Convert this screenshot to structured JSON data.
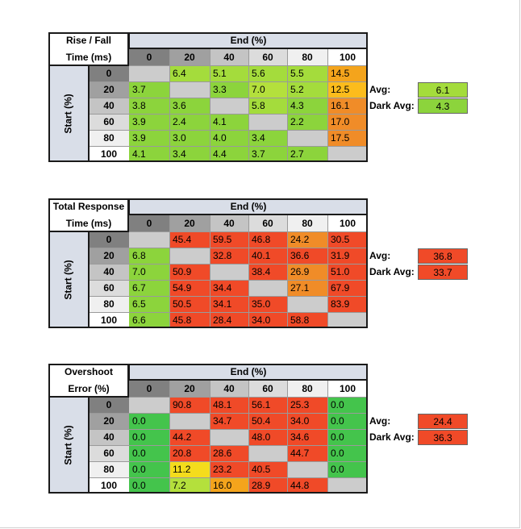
{
  "chart_data": [
    {
      "type": "table",
      "title_lines": [
        "Rise / Fall",
        "Time (ms)"
      ],
      "column_label": "End (%)",
      "row_label": "Start (%)",
      "columns": [
        "0",
        "20",
        "40",
        "60",
        "80",
        "100"
      ],
      "rows": [
        "0",
        "20",
        "40",
        "60",
        "80",
        "100"
      ],
      "values": [
        [
          null,
          6.4,
          5.1,
          5.6,
          5.5,
          14.5
        ],
        [
          3.7,
          null,
          3.3,
          7.0,
          5.2,
          12.5
        ],
        [
          3.8,
          3.6,
          null,
          5.8,
          4.3,
          16.1
        ],
        [
          3.9,
          2.4,
          4.1,
          null,
          2.2,
          17.0
        ],
        [
          3.9,
          3.0,
          4.0,
          3.4,
          null,
          17.5
        ],
        [
          4.1,
          3.4,
          4.4,
          3.7,
          2.7,
          null
        ]
      ],
      "cell_colors": [
        [
          "#cccccc",
          "#a4dc3c",
          "#a4dc3c",
          "#a4dc3c",
          "#a4dc3c",
          "#f4a41c"
        ],
        [
          "#8cd43c",
          "#cccccc",
          "#8cd43c",
          "#b4e03c",
          "#a4dc3c",
          "#fcbc1c"
        ],
        [
          "#8cd43c",
          "#8cd43c",
          "#cccccc",
          "#a4dc3c",
          "#8cd43c",
          "#f08c28"
        ],
        [
          "#8cd43c",
          "#8cd43c",
          "#8cd43c",
          "#cccccc",
          "#8cd43c",
          "#f08c28"
        ],
        [
          "#8cd43c",
          "#8cd43c",
          "#8cd43c",
          "#8cd43c",
          "#cccccc",
          "#f08c28"
        ],
        [
          "#8cd43c",
          "#8cd43c",
          "#8cd43c",
          "#8cd43c",
          "#8cd43c",
          "#cccccc"
        ]
      ],
      "summary": [
        {
          "label": "Avg:",
          "value": "6.1",
          "color": "#a4dc3c"
        },
        {
          "label": "Dark Avg:",
          "value": "4.3",
          "color": "#8cd43c"
        }
      ]
    },
    {
      "type": "table",
      "title_lines": [
        "Total Response",
        "Time (ms)"
      ],
      "column_label": "End (%)",
      "row_label": "Start (%)",
      "columns": [
        "0",
        "20",
        "40",
        "60",
        "80",
        "100"
      ],
      "rows": [
        "0",
        "20",
        "40",
        "60",
        "80",
        "100"
      ],
      "values": [
        [
          null,
          45.4,
          59.5,
          46.8,
          24.2,
          30.5
        ],
        [
          6.8,
          null,
          32.8,
          40.1,
          36.6,
          31.9
        ],
        [
          7.0,
          50.9,
          null,
          38.4,
          26.9,
          51.0
        ],
        [
          6.7,
          54.9,
          34.4,
          null,
          27.1,
          67.9
        ],
        [
          6.5,
          50.5,
          34.1,
          35.0,
          null,
          83.9
        ],
        [
          6.6,
          45.8,
          28.4,
          34.0,
          58.8,
          null
        ]
      ],
      "cell_colors": [
        [
          "#cccccc",
          "#f04a28",
          "#f04a28",
          "#f04a28",
          "#f08c28",
          "#f04a28"
        ],
        [
          "#8cd43c",
          "#cccccc",
          "#f04a28",
          "#f04a28",
          "#f04a28",
          "#f04a28"
        ],
        [
          "#8cd43c",
          "#f04a28",
          "#cccccc",
          "#f04a28",
          "#f08c28",
          "#f04a28"
        ],
        [
          "#8cd43c",
          "#f04a28",
          "#f04a28",
          "#cccccc",
          "#f08c28",
          "#f04a28"
        ],
        [
          "#8cd43c",
          "#f04a28",
          "#f04a28",
          "#f04a28",
          "#cccccc",
          "#f04a28"
        ],
        [
          "#8cd43c",
          "#f04a28",
          "#f04a28",
          "#f04a28",
          "#f04a28",
          "#cccccc"
        ]
      ],
      "summary": [
        {
          "label": "Avg:",
          "value": "36.8",
          "color": "#f04a28"
        },
        {
          "label": "Dark Avg:",
          "value": "33.7",
          "color": "#f04a28"
        }
      ]
    },
    {
      "type": "table",
      "title_lines": [
        "Overshoot",
        "Error (%)"
      ],
      "column_label": "End (%)",
      "row_label": "Start (%)",
      "columns": [
        "0",
        "20",
        "40",
        "60",
        "80",
        "100"
      ],
      "rows": [
        "0",
        "20",
        "40",
        "60",
        "80",
        "100"
      ],
      "values": [
        [
          null,
          90.8,
          48.1,
          56.1,
          25.3,
          0.0
        ],
        [
          0.0,
          null,
          34.7,
          50.4,
          34.0,
          0.0
        ],
        [
          0.0,
          44.2,
          null,
          48.0,
          34.6,
          0.0
        ],
        [
          0.0,
          20.8,
          28.6,
          null,
          44.7,
          0.0
        ],
        [
          0.0,
          11.2,
          23.2,
          40.5,
          null,
          0.0
        ],
        [
          0.0,
          7.2,
          16.0,
          28.9,
          44.8,
          null
        ]
      ],
      "cell_colors": [
        [
          "#cccccc",
          "#f04a28",
          "#f04a28",
          "#f04a28",
          "#f04a28",
          "#44c44c"
        ],
        [
          "#44c44c",
          "#cccccc",
          "#f04a28",
          "#f04a28",
          "#f04a28",
          "#44c44c"
        ],
        [
          "#44c44c",
          "#f04a28",
          "#cccccc",
          "#f04a28",
          "#f04a28",
          "#44c44c"
        ],
        [
          "#44c44c",
          "#f04a28",
          "#f04a28",
          "#cccccc",
          "#f04a28",
          "#44c44c"
        ],
        [
          "#44c44c",
          "#f4dc1c",
          "#f04a28",
          "#f04a28",
          "#cccccc",
          "#44c44c"
        ],
        [
          "#44c44c",
          "#b4e03c",
          "#f4a41c",
          "#f04a28",
          "#f04a28",
          "#cccccc"
        ]
      ],
      "summary": [
        {
          "label": "Avg:",
          "value": "24.4",
          "color": "#f04a28"
        },
        {
          "label": "Dark Avg:",
          "value": "36.3",
          "color": "#f04a28"
        }
      ]
    }
  ],
  "header_colors": [
    "#808080",
    "#a0a0a0",
    "#c4c4c4",
    "#dcdcdc",
    "#f0f0f0",
    "#ffffff"
  ]
}
